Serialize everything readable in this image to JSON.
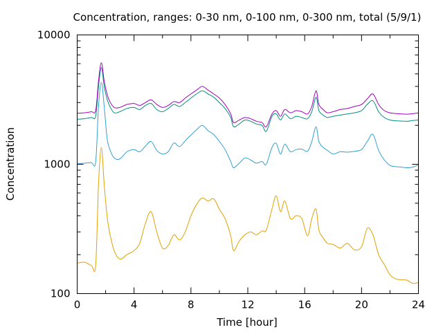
{
  "chart_data": {
    "type": "line",
    "title": "Concentration, ranges: 0-30 nm, 0-100 nm, 0-300 nm, total (5/9/1)",
    "xlabel": "Time [hour]",
    "ylabel": "Concentration",
    "xlim": [
      0,
      24
    ],
    "ylim": [
      100,
      10000
    ],
    "yscale": "log",
    "grid": false,
    "legend": "none",
    "x_ticks": [
      0,
      4,
      8,
      12,
      16,
      20,
      24
    ],
    "x_tick_labels": [
      "0",
      "4",
      "8",
      "12",
      "16",
      "20",
      "24"
    ],
    "y_ticks": [
      100,
      1000,
      10000
    ],
    "y_tick_labels": [
      "100",
      "1000",
      "10000"
    ],
    "x": [
      0,
      0.5,
      1.0,
      1.3,
      1.5,
      1.7,
      1.9,
      2.1,
      2.3,
      2.6,
      3.0,
      3.5,
      4.0,
      4.4,
      4.8,
      5.2,
      5.6,
      6.0,
      6.4,
      6.8,
      7.2,
      7.6,
      8.0,
      8.4,
      8.8,
      9.2,
      9.6,
      10.0,
      10.4,
      10.8,
      11.0,
      11.4,
      11.8,
      12.2,
      12.6,
      13.0,
      13.3,
      13.7,
      14.0,
      14.3,
      14.6,
      15.0,
      15.4,
      15.8,
      16.2,
      16.5,
      16.8,
      17.0,
      17.3,
      17.6,
      18.0,
      18.5,
      19.0,
      19.5,
      20.0,
      20.4,
      20.8,
      21.2,
      21.6,
      22.0,
      22.4,
      22.8,
      23.2,
      23.6,
      24.0
    ],
    "series": [
      {
        "color": "#e0a000",
        "values": [
          172,
          175,
          165,
          165,
          700,
          1350,
          700,
          400,
          290,
          215,
          185,
          200,
          215,
          245,
          350,
          430,
          300,
          225,
          235,
          285,
          260,
          300,
          400,
          490,
          550,
          520,
          540,
          450,
          380,
          280,
          215,
          255,
          285,
          300,
          285,
          305,
          310,
          450,
          570,
          430,
          520,
          380,
          400,
          380,
          280,
          380,
          450,
          310,
          270,
          245,
          240,
          225,
          245,
          218,
          230,
          320,
          285,
          200,
          168,
          140,
          130,
          128,
          127,
          120,
          122
        ]
      },
      {
        "color": "#30a0d0",
        "values": [
          1010,
          1020,
          1030,
          1040,
          2800,
          4300,
          2800,
          1600,
          1300,
          1120,
          1100,
          1250,
          1300,
          1250,
          1380,
          1500,
          1280,
          1200,
          1250,
          1460,
          1370,
          1520,
          1680,
          1850,
          2000,
          1820,
          1700,
          1500,
          1300,
          1050,
          940,
          1020,
          1120,
          1080,
          1020,
          1050,
          1000,
          1350,
          1450,
          1200,
          1430,
          1250,
          1300,
          1310,
          1260,
          1500,
          1950,
          1500,
          1350,
          1280,
          1200,
          1250,
          1240,
          1260,
          1300,
          1500,
          1700,
          1280,
          1080,
          980,
          960,
          950,
          940,
          950,
          990
        ]
      },
      {
        "color": "#009080",
        "values": [
          2230,
          2250,
          2300,
          2350,
          4000,
          5600,
          4000,
          3200,
          2800,
          2500,
          2550,
          2700,
          2750,
          2650,
          2850,
          2950,
          2650,
          2550,
          2700,
          2900,
          2800,
          3000,
          3250,
          3500,
          3700,
          3500,
          3300,
          3000,
          2700,
          2300,
          1950,
          2050,
          2200,
          2150,
          2050,
          2000,
          1800,
          2350,
          2450,
          2200,
          2450,
          2250,
          2350,
          2300,
          2250,
          2550,
          3300,
          2600,
          2400,
          2300,
          2350,
          2400,
          2450,
          2500,
          2600,
          2900,
          3100,
          2550,
          2300,
          2200,
          2170,
          2160,
          2150,
          2180,
          2200
        ]
      },
      {
        "color": "#a000c0",
        "values": [
          2480,
          2500,
          2550,
          2600,
          4400,
          6100,
          4400,
          3500,
          3050,
          2750,
          2750,
          2900,
          2950,
          2850,
          3000,
          3150,
          2900,
          2750,
          2850,
          3050,
          3000,
          3250,
          3500,
          3750,
          4000,
          3750,
          3500,
          3250,
          2900,
          2450,
          2100,
          2200,
          2300,
          2250,
          2150,
          2100,
          1950,
          2450,
          2600,
          2350,
          2650,
          2500,
          2600,
          2550,
          2450,
          2800,
          3700,
          2900,
          2650,
          2500,
          2550,
          2650,
          2700,
          2800,
          2900,
          3200,
          3500,
          2900,
          2600,
          2500,
          2470,
          2450,
          2440,
          2460,
          2500
        ]
      }
    ]
  }
}
